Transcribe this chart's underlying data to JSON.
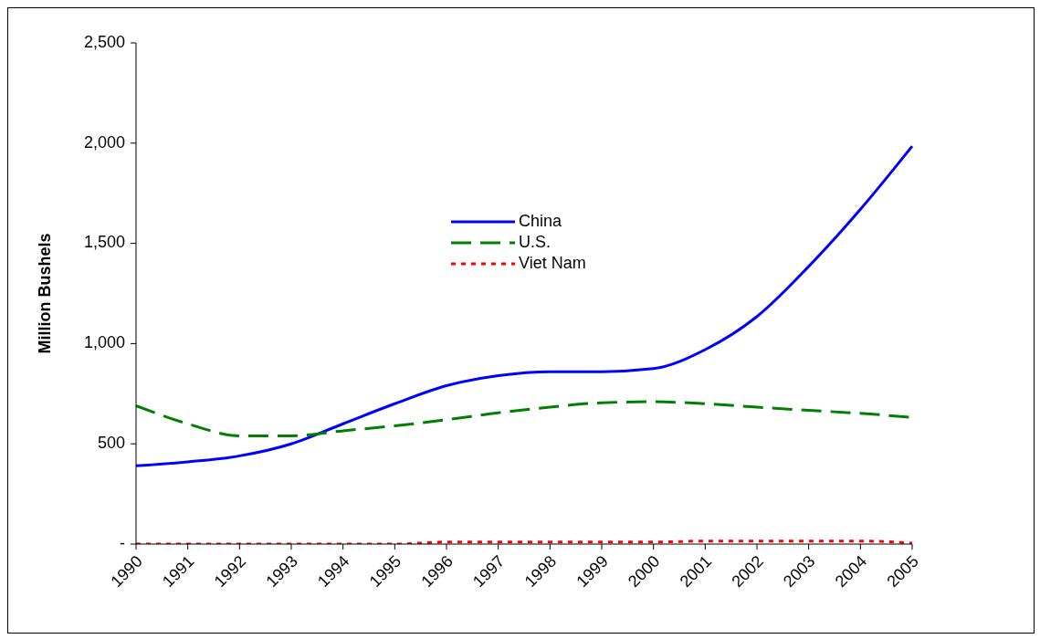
{
  "chart_data": {
    "type": "line",
    "ylabel": "Million Bushels",
    "categories": [
      "1990",
      "1991",
      "1992",
      "1993",
      "1994",
      "1995",
      "1996",
      "1997",
      "1998",
      "1999",
      "2000",
      "2001",
      "2002",
      "2003",
      "2004",
      "2005"
    ],
    "series": [
      {
        "name": "China",
        "color": "#0000ff",
        "line_style": "solid",
        "values": [
          390,
          410,
          440,
          500,
          600,
          700,
          790,
          840,
          860,
          860,
          875,
          970,
          1135,
          1385,
          1670,
          1985
        ]
      },
      {
        "name": "U.S.",
        "color": "#008000",
        "line_style": "dashed",
        "values": [
          690,
          600,
          540,
          540,
          565,
          590,
          620,
          655,
          683,
          705,
          710,
          700,
          683,
          667,
          652,
          632
        ]
      },
      {
        "name": "Viet Nam",
        "color": "#ff0000",
        "line_style": "dotted",
        "values": [
          0,
          0,
          0,
          0,
          0,
          0,
          10,
          10,
          10,
          10,
          10,
          15,
          15,
          15,
          15,
          5
        ]
      }
    ],
    "ylim": [
      0,
      2500
    ],
    "yticks": [
      {
        "value": 0,
        "label": "-"
      },
      500,
      {
        "value": 1000,
        "label": "1,000"
      },
      {
        "value": 1500,
        "label": "1,500"
      },
      {
        "value": 2000,
        "label": "2,000"
      },
      {
        "value": 2500,
        "label": "2,500"
      }
    ],
    "grid": false,
    "legend": "top center",
    "marker": "none"
  }
}
